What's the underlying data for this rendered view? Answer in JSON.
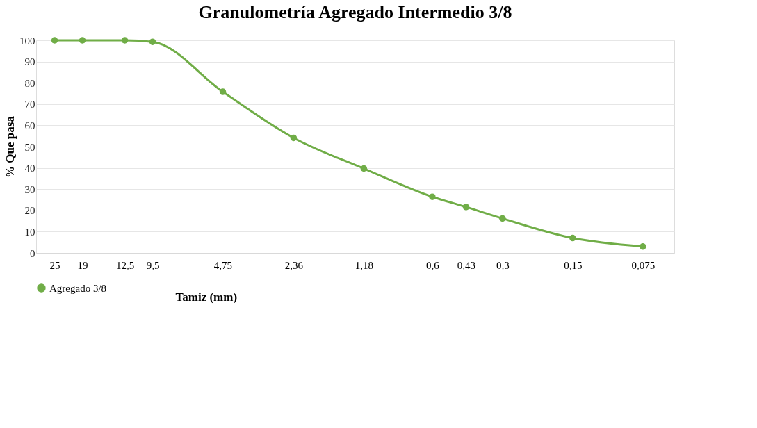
{
  "chart_data": {
    "type": "line",
    "title": "Granulometría Agregado Intermedio 3/8",
    "xlabel": "Tamiz (mm)",
    "ylabel": "% Que pasa",
    "x": [
      25,
      19,
      12.5,
      9.5,
      4.75,
      2.36,
      1.18,
      0.6,
      0.43,
      0.3,
      0.15,
      0.075
    ],
    "series": [
      {
        "name": "Agregado 3/8",
        "color": "#70ad47",
        "values": [
          100,
          100,
          100,
          99.3,
          75.8,
          54.1,
          39.7,
          26.4,
          21.6,
          16.2,
          7,
          3
        ]
      }
    ],
    "log": "x",
    "xlim": [
      30,
      0.055
    ],
    "xticks": [
      25,
      19,
      {
        "value": 12.5,
        "label": "12,5"
      },
      {
        "value": 9.5,
        "label": "9,5"
      },
      {
        "value": 4.75,
        "label": "4,75"
      },
      {
        "value": 2.36,
        "label": "2,36"
      },
      {
        "value": 1.18,
        "label": "1,18"
      },
      {
        "value": 0.6,
        "label": "0,6"
      },
      {
        "value": 0.43,
        "label": "0,43"
      },
      {
        "value": 0.3,
        "label": "0,3"
      },
      {
        "value": 0.15,
        "label": "0,15"
      },
      {
        "value": 0.075,
        "label": "0,075"
      }
    ],
    "ylim": [
      0,
      100
    ],
    "yticks": [
      0,
      10,
      20,
      30,
      40,
      50,
      60,
      70,
      80,
      90,
      100
    ],
    "grid": "y",
    "legend": "bottom",
    "marker": "circle",
    "line_style": "solid"
  }
}
